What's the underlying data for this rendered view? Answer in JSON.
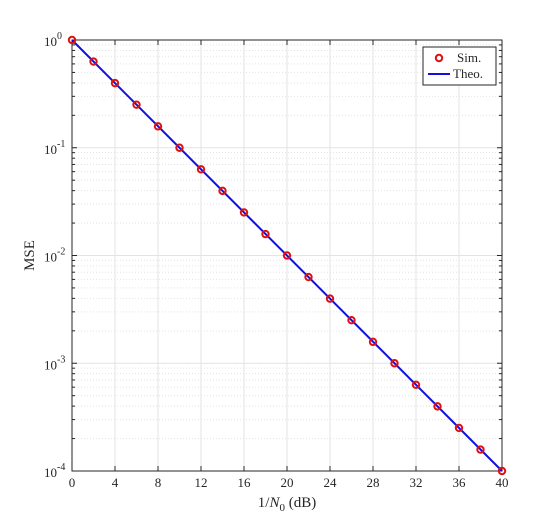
{
  "chart_data": {
    "type": "line",
    "title": "",
    "xlabel": {
      "prefix": "1/",
      "var": "N",
      "sub": "0",
      "suffix": " (dB)"
    },
    "ylabel": "MSE",
    "x_ticks": [
      0,
      4,
      8,
      12,
      16,
      20,
      24,
      28,
      32,
      36,
      40
    ],
    "y_ticks": [
      {
        "base": "10",
        "exp": "0",
        "value": 1
      },
      {
        "base": "10",
        "exp": "-1",
        "value": 0.1
      },
      {
        "base": "10",
        "exp": "-2",
        "value": 0.01
      },
      {
        "base": "10",
        "exp": "-3",
        "value": 0.001
      },
      {
        "base": "10",
        "exp": "-4",
        "value": 0.0001
      }
    ],
    "xlim": [
      0,
      40
    ],
    "ylim": [
      0.0001,
      1
    ],
    "y_scale": "log",
    "grid": true,
    "legend_position": "top-right",
    "series": [
      {
        "name": "Sim.",
        "style": "markers",
        "marker": "circle",
        "color": "#e01010",
        "x": [
          0,
          2,
          4,
          6,
          8,
          10,
          12,
          14,
          16,
          18,
          20,
          22,
          24,
          26,
          28,
          30,
          32,
          34,
          36,
          38,
          40
        ],
        "y": [
          1,
          0.631,
          0.398,
          0.251,
          0.158,
          0.1,
          0.0631,
          0.0398,
          0.0251,
          0.0158,
          0.01,
          0.00631,
          0.00398,
          0.00251,
          0.00158,
          0.001,
          0.000631,
          0.000398,
          0.000251,
          0.000158,
          0.0001
        ]
      },
      {
        "name": "Theo.",
        "style": "line",
        "color": "#1010e0",
        "x": [
          0,
          40
        ],
        "y": [
          1,
          0.0001
        ]
      }
    ]
  }
}
